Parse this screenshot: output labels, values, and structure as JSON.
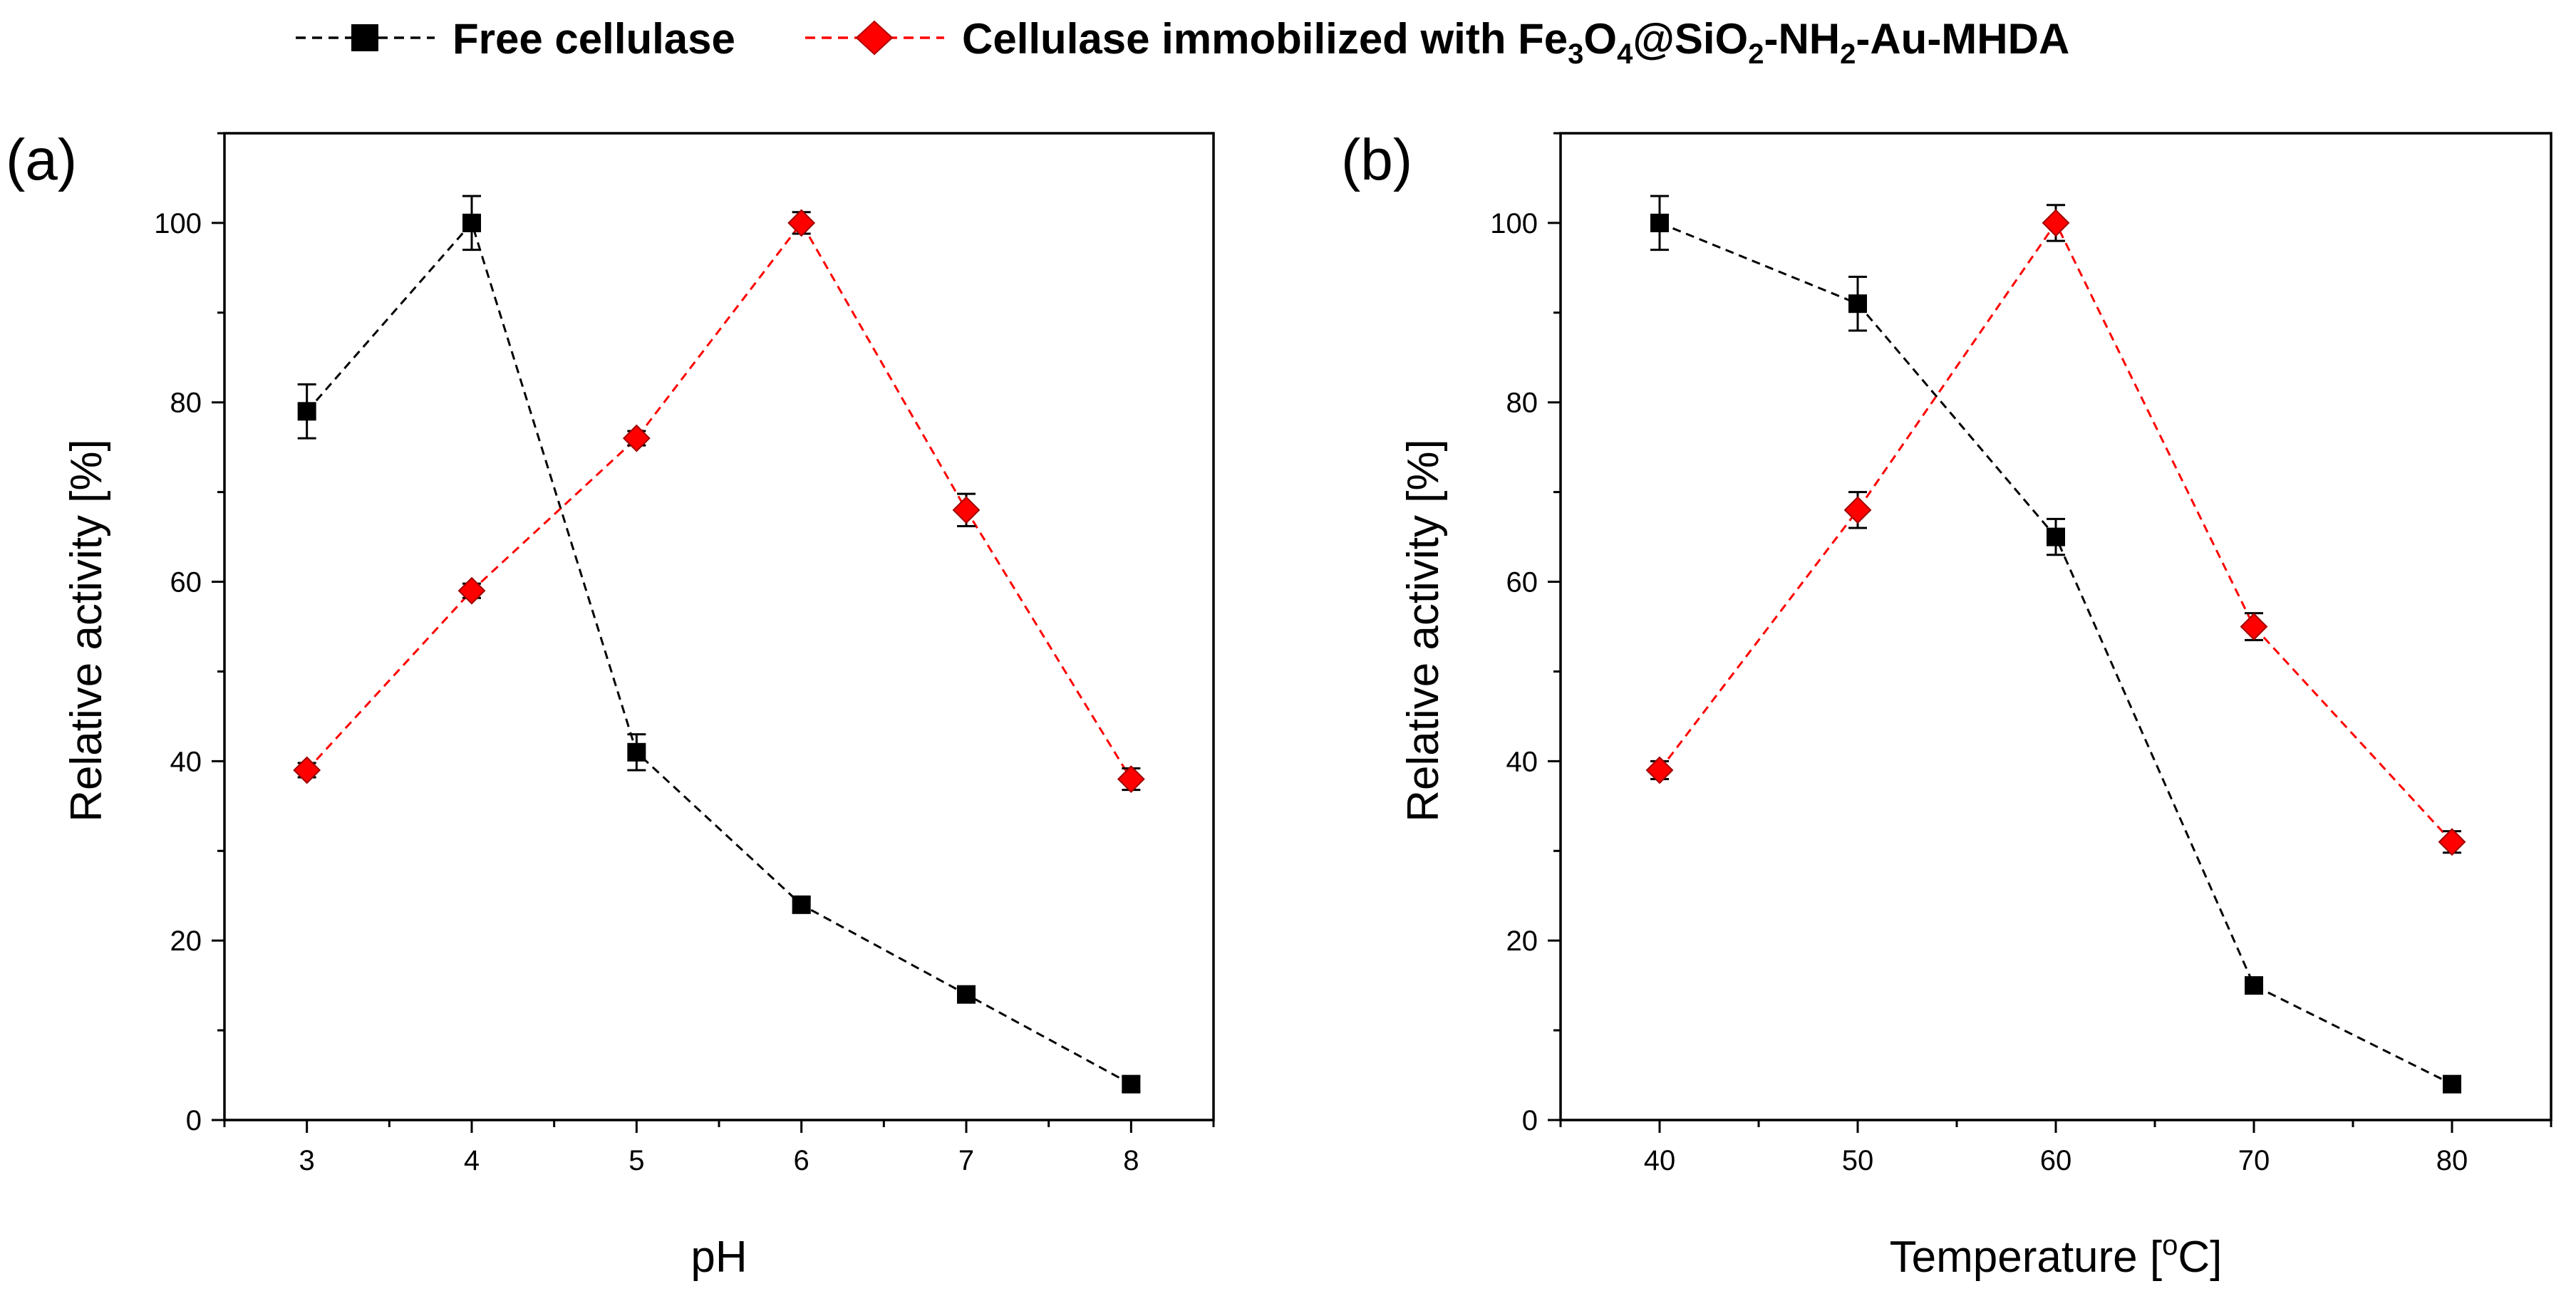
{
  "legend": {
    "series_a_label": "Free cellulase",
    "series_b_label_prefix": "Cellulase immobilized with Fe",
    "series_b_label_sub1": "3",
    "series_b_label_mid1": "O",
    "series_b_label_sub2": "4",
    "series_b_label_mid2": "@SiO",
    "series_b_label_sub3": "2",
    "series_b_label_mid3": "-NH",
    "series_b_label_sub4": "2",
    "series_b_label_suffix": "-Au-MHDA",
    "series_b_label_full": "Cellulase immobilized with Fe3O4@SiO2-NH2-Au-MHDA"
  },
  "colors": {
    "series_a": "#000000",
    "series_b": "#ff0000"
  },
  "chart_data": [
    {
      "panel_label": "(a)",
      "type": "line",
      "xlabel": "pH",
      "ylabel": "Relative activity [%]",
      "x": [
        3,
        4,
        5,
        6,
        7,
        8
      ],
      "xlim": [
        2.5,
        8.5
      ],
      "ylim": [
        0,
        110
      ],
      "x_ticks": [
        3,
        4,
        5,
        6,
        7,
        8
      ],
      "y_ticks": [
        0,
        20,
        40,
        60,
        80,
        100
      ],
      "series": [
        {
          "name": "Free cellulase",
          "marker": "square",
          "values": [
            79,
            100,
            41,
            24,
            14,
            4
          ],
          "errors": [
            3,
            3,
            2,
            0.8,
            0.8,
            0.8
          ]
        },
        {
          "name": "Cellulase immobilized with Fe3O4@SiO2-NH2-Au-MHDA",
          "marker": "diamond",
          "values": [
            39,
            59,
            76,
            100,
            68,
            38
          ],
          "errors": [
            0.8,
            0.8,
            0.8,
            1.2,
            1.8,
            1.2
          ]
        }
      ]
    },
    {
      "panel_label": "(b)",
      "type": "line",
      "xlabel_prefix": "Temperature [",
      "xlabel_sup": "o",
      "xlabel_suffix": "C]",
      "xlabel": "Temperature [oC]",
      "ylabel": "Relative activity [%]",
      "x": [
        40,
        50,
        60,
        70,
        80
      ],
      "xlim": [
        35,
        85
      ],
      "ylim": [
        0,
        110
      ],
      "x_ticks": [
        40,
        50,
        60,
        70,
        80
      ],
      "y_ticks": [
        0,
        20,
        40,
        60,
        80,
        100
      ],
      "series": [
        {
          "name": "Free cellulase",
          "marker": "square",
          "values": [
            100,
            91,
            65,
            15,
            4
          ],
          "errors": [
            3,
            3,
            2,
            0.8,
            0.8
          ]
        },
        {
          "name": "Cellulase immobilized with Fe3O4@SiO2-NH2-Au-MHDA",
          "marker": "diamond",
          "values": [
            39,
            68,
            100,
            55,
            31
          ],
          "errors": [
            1,
            2,
            2,
            1.5,
            1.2
          ]
        }
      ]
    }
  ]
}
